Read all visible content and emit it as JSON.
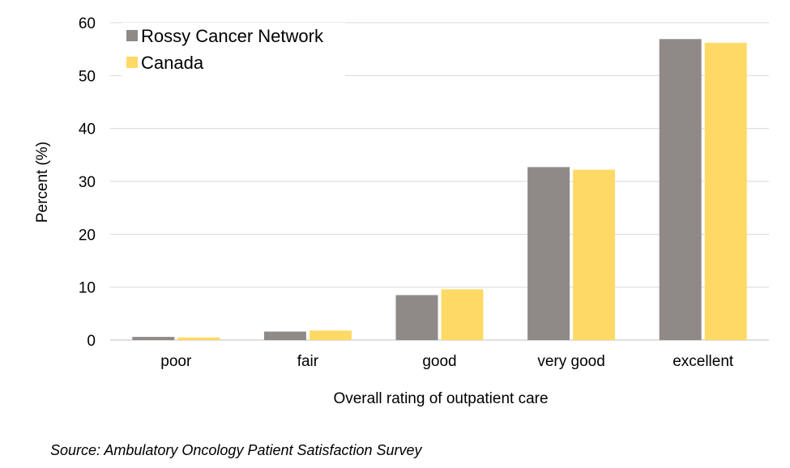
{
  "chart_data": {
    "type": "bar",
    "categories": [
      "poor",
      "fair",
      "good",
      "very good",
      "excellent"
    ],
    "series": [
      {
        "name": "Rossy Cancer Network",
        "values": [
          0.6,
          1.6,
          8.5,
          32.7,
          56.9
        ]
      },
      {
        "name": "Canada",
        "values": [
          0.5,
          1.8,
          9.6,
          32.2,
          56.2
        ]
      }
    ],
    "xlabel": "Overall rating of outpatient care",
    "ylabel": "Percent (%)",
    "ylim": [
      0,
      60
    ],
    "yticks": [
      0,
      10,
      20,
      30,
      40,
      50,
      60
    ],
    "grid": "horizontal",
    "legend_position": "top-left",
    "colors": [
      "#8f8a88",
      "#ffd966"
    ]
  },
  "source": "Source: Ambulatory Oncology Patient Satisfaction Survey"
}
